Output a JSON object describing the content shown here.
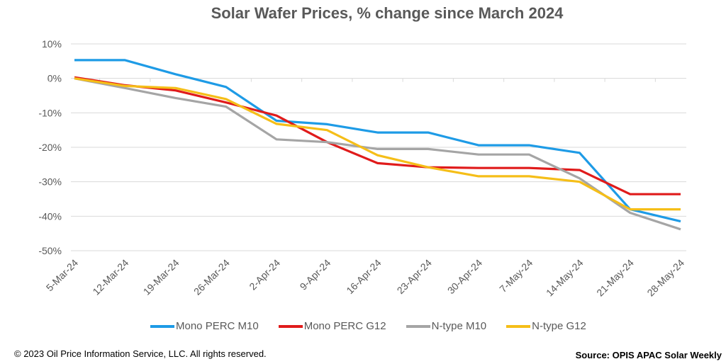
{
  "chart_data": {
    "type": "line",
    "title": "Solar Wafer Prices, % change since March 2024",
    "xlabel": "",
    "ylabel": "",
    "ylim": [
      -50,
      10
    ],
    "yticks": [
      10,
      0,
      -10,
      -20,
      -30,
      -40,
      -50
    ],
    "ytick_labels": [
      "10%",
      "0%",
      "-10%",
      "-20%",
      "-30%",
      "-40%",
      "-50%"
    ],
    "categories": [
      "5-Mar-24",
      "12-Mar-24",
      "19-Mar-24",
      "26-Mar-24",
      "2-Apr-24",
      "9-Apr-24",
      "16-Apr-24",
      "23-Apr-24",
      "30-Apr-24",
      "7-May-24",
      "14-May-24",
      "21-May-24",
      "28-May-24"
    ],
    "grid": true,
    "legend_position": "bottom",
    "series": [
      {
        "name": "Mono PERC M10",
        "color": "#1E9BE6",
        "values": [
          5.3,
          5.3,
          1.2,
          -2.5,
          -12.3,
          -13.3,
          -15.7,
          -15.7,
          -19.4,
          -19.4,
          -21.6,
          -38.0,
          -41.5
        ]
      },
      {
        "name": "Mono PERC G12",
        "color": "#E01B1B",
        "values": [
          0.3,
          -2.0,
          -3.5,
          -7.0,
          -10.8,
          -18.5,
          -24.6,
          -25.8,
          -26.0,
          -26.0,
          -26.6,
          -33.6,
          -33.6
        ]
      },
      {
        "name": "N-type M10",
        "color": "#A5A5A5",
        "values": [
          0.0,
          -2.8,
          -5.7,
          -8.2,
          -17.7,
          -18.5,
          -20.5,
          -20.5,
          -22.1,
          -22.1,
          -29.0,
          -39.0,
          -43.8
        ]
      },
      {
        "name": "N-type G12",
        "color": "#F5BE18",
        "values": [
          0.0,
          -2.2,
          -2.8,
          -6.0,
          -13.2,
          -15.0,
          -22.3,
          -25.8,
          -28.4,
          -28.4,
          -30.0,
          -38.0,
          -38.0
        ]
      }
    ]
  },
  "footer": {
    "copyright": "© 2023 Oil Price Information Service, LLC. All rights reserved.",
    "source": "Source: OPIS APAC Solar Weekly"
  }
}
